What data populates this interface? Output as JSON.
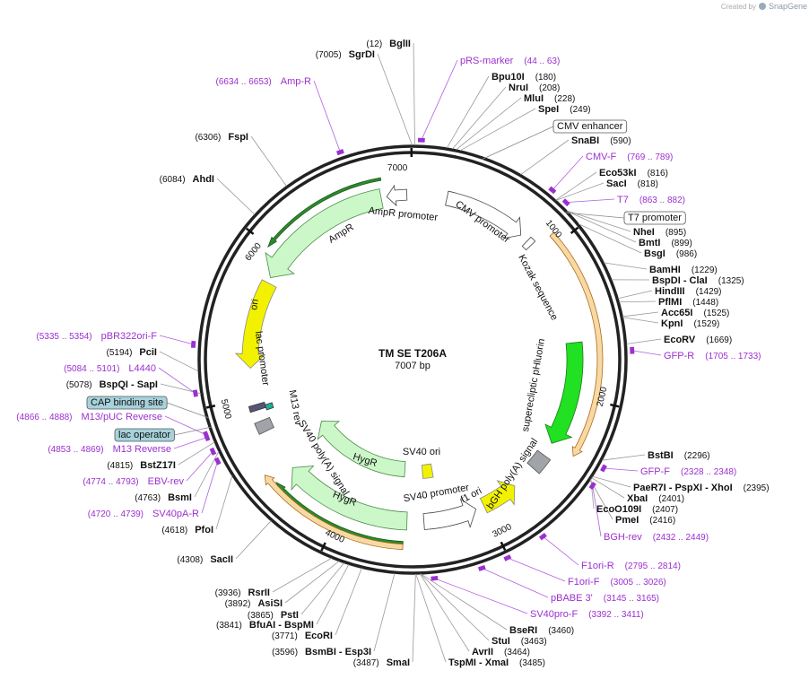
{
  "header": {
    "credit": "Created by",
    "brand": "SnapGene"
  },
  "map": {
    "name": "TM SE T206A",
    "length": "7007 bp"
  },
  "ruler": [
    1000,
    2000,
    3000,
    4000,
    5000,
    6000,
    7000
  ],
  "enzymes": [
    {
      "name": "BglII",
      "site": "(12)"
    },
    {
      "name": "SgrDI",
      "site": "(7005)"
    },
    {
      "name": "FspI",
      "site": "(6306)"
    },
    {
      "name": "AhdI",
      "site": "(6084)"
    },
    {
      "name": "PciI",
      "site": "(5194)"
    },
    {
      "name": "BspQI - SapI",
      "site": "(5078)"
    },
    {
      "name": "BstZ17I",
      "site": "(4815)"
    },
    {
      "name": "BsmI",
      "site": "(4763)"
    },
    {
      "name": "PfoI",
      "site": "(4618)"
    },
    {
      "name": "SacII",
      "site": "(4308)"
    },
    {
      "name": "RsrII",
      "site": "(3936)"
    },
    {
      "name": "AsiSI",
      "site": "(3892)"
    },
    {
      "name": "PstI",
      "site": "(3865)"
    },
    {
      "name": "BfuAI - BspMI",
      "site": "(3841)"
    },
    {
      "name": "EcoRI",
      "site": "(3771)"
    },
    {
      "name": "BsmBI - Esp3I",
      "site": "(3596)"
    },
    {
      "name": "SmaI",
      "site": "(3487)"
    },
    {
      "name": "TspMI - XmaI",
      "site": "(3485)"
    },
    {
      "name": "AvrII",
      "site": "(3464)"
    },
    {
      "name": "StuI",
      "site": "(3463)"
    },
    {
      "name": "BseRI",
      "site": "(3460)"
    },
    {
      "name": "PmeI",
      "site": "(2416)"
    },
    {
      "name": "EcoO109I",
      "site": "(2407)"
    },
    {
      "name": "XbaI",
      "site": "(2401)"
    },
    {
      "name": "PaeR7I - PspXI - XhoI",
      "site": "(2395)"
    },
    {
      "name": "BstBI",
      "site": "(2296)"
    },
    {
      "name": "EcoRV",
      "site": "(1669)"
    },
    {
      "name": "KpnI",
      "site": "(1529)"
    },
    {
      "name": "Acc65I",
      "site": "(1525)"
    },
    {
      "name": "PflMI",
      "site": "(1448)"
    },
    {
      "name": "HindIII",
      "site": "(1429)"
    },
    {
      "name": "BspDI - ClaI",
      "site": "(1325)"
    },
    {
      "name": "BamHI",
      "site": "(1229)"
    },
    {
      "name": "BsgI",
      "site": "(986)"
    },
    {
      "name": "BmtI",
      "site": "(899)"
    },
    {
      "name": "NheI",
      "site": "(895)"
    },
    {
      "name": "SacI",
      "site": "(818)"
    },
    {
      "name": "Eco53kI",
      "site": "(816)"
    },
    {
      "name": "SnaBI",
      "site": "(590)"
    },
    {
      "name": "SpeI",
      "site": "(249)"
    },
    {
      "name": "MluI",
      "site": "(228)"
    },
    {
      "name": "NruI",
      "site": "(208)"
    },
    {
      "name": "Bpu10I",
      "site": "(180)"
    }
  ],
  "primers": [
    {
      "name": "pRS-marker",
      "range": "(44 .. 63)"
    },
    {
      "name": "CMV-F",
      "range": "(769 .. 789)"
    },
    {
      "name": "T7",
      "range": "(863 .. 882)"
    },
    {
      "name": "GFP-R",
      "range": "(1705 .. 1733)"
    },
    {
      "name": "GFP-F",
      "range": "(2328 .. 2348)"
    },
    {
      "name": "BGH-rev",
      "range": "(2432 .. 2449)"
    },
    {
      "name": "F1ori-R",
      "range": "(2795 .. 2814)"
    },
    {
      "name": "F1ori-F",
      "range": "(3005 .. 3026)"
    },
    {
      "name": "pBABE 3'",
      "range": "(3145 .. 3165)"
    },
    {
      "name": "SV40pro-F",
      "range": "(3392 .. 3411)"
    },
    {
      "name": "Amp-R",
      "range": "(6634 .. 6653)"
    },
    {
      "name": "pBR322ori-F",
      "range": "(5335 .. 5354)"
    },
    {
      "name": "L4440",
      "range": "(5084 .. 5101)"
    },
    {
      "name": "M13/pUC Reverse",
      "range": "(4866 .. 4888)"
    },
    {
      "name": "M13 Reverse",
      "range": "(4853 .. 4869)"
    },
    {
      "name": "EBV-rev",
      "range": "(4774 .. 4793)"
    },
    {
      "name": "SV40pA-R",
      "range": "(4720 .. 4739)"
    }
  ],
  "boxed_features": [
    "CMV enhancer",
    "T7 promoter",
    "CAP binding site",
    "lac operator"
  ],
  "features": [
    "AmpR promoter",
    "AmpR",
    "CMV promoter",
    "Kozak sequence",
    "ori",
    "lac promoter",
    "M13 rev",
    "superecliptic pHluorin",
    "SV40 poly(A) signal",
    "HygR",
    "HygR",
    "SV40 ori",
    "bGH poly(A) signal",
    "f1 ori",
    "SV40 promoter"
  ]
}
